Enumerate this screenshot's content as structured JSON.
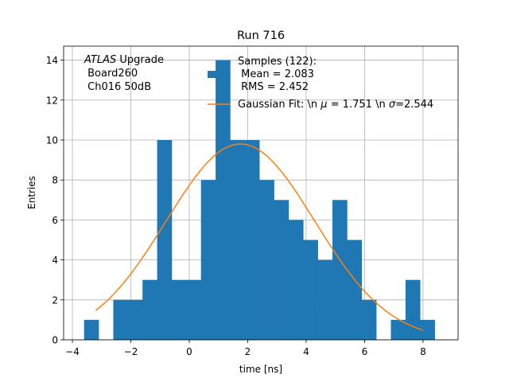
{
  "chart_data": {
    "type": "bar",
    "title": "Run 716",
    "xlabel": "time [ns]",
    "ylabel": "Entries",
    "xlim": [
      -4.3,
      9.2
    ],
    "ylim": [
      0,
      14.7
    ],
    "xticks": [
      -4,
      -2,
      0,
      2,
      4,
      6,
      8
    ],
    "xtick_labels": [
      "−4",
      "−2",
      "0",
      "2",
      "4",
      "6",
      "8"
    ],
    "yticks": [
      0,
      2,
      4,
      6,
      8,
      10,
      12,
      14
    ],
    "grid": true,
    "bin_width": 0.5,
    "bars": [
      {
        "x0": -3.6,
        "value": 1
      },
      {
        "x0": -3.1,
        "value": 0
      },
      {
        "x0": -2.6,
        "value": 2
      },
      {
        "x0": -2.1,
        "value": 2
      },
      {
        "x0": -1.6,
        "value": 3
      },
      {
        "x0": -1.1,
        "value": 10
      },
      {
        "x0": -0.6,
        "value": 3
      },
      {
        "x0": -0.1,
        "value": 3
      },
      {
        "x0": 0.4,
        "value": 8
      },
      {
        "x0": 0.9,
        "value": 14
      },
      {
        "x0": 1.4,
        "value": 10
      },
      {
        "x0": 1.9,
        "value": 10
      },
      {
        "x0": 2.4,
        "value": 8
      },
      {
        "x0": 2.9,
        "value": 7
      },
      {
        "x0": 3.4,
        "value": 6
      },
      {
        "x0": 3.9,
        "value": 5
      },
      {
        "x0": 4.4,
        "value": 4
      },
      {
        "x0": 4.9,
        "value": 7
      },
      {
        "x0": 5.4,
        "value": 5
      },
      {
        "x0": 5.9,
        "value": 2
      },
      {
        "x0": 6.4,
        "value": 0
      },
      {
        "x0": 6.9,
        "value": 1
      },
      {
        "x0": 7.4,
        "value": 3
      },
      {
        "x0": 7.9,
        "value": 1
      }
    ],
    "fit": {
      "amplitude": 9.8,
      "mu": 1.751,
      "sigma": 2.544,
      "x_range": [
        -3.2,
        8.0
      ]
    },
    "annotation": {
      "line1_italic": "ATLAS",
      "line1_rest": " Upgrade",
      "line2": " Board260",
      "line3": " Ch016 50dB"
    },
    "legend": {
      "position": "upper-right",
      "entries": [
        {
          "kind": "patch",
          "label_lines": [
            "Samples (122):",
            " Mean = 2.083",
            " RMS = 2.452"
          ]
        },
        {
          "kind": "line",
          "label_parts": [
            "Gaussian Fit: \\n ",
            "μ",
            " = 1.751 \\n ",
            "σ",
            "=2.544"
          ]
        }
      ]
    },
    "colors": {
      "bars": "#1f77b4",
      "fit": "#ff7f0e",
      "grid": "#b0b0b0",
      "axes": "#000000"
    }
  }
}
